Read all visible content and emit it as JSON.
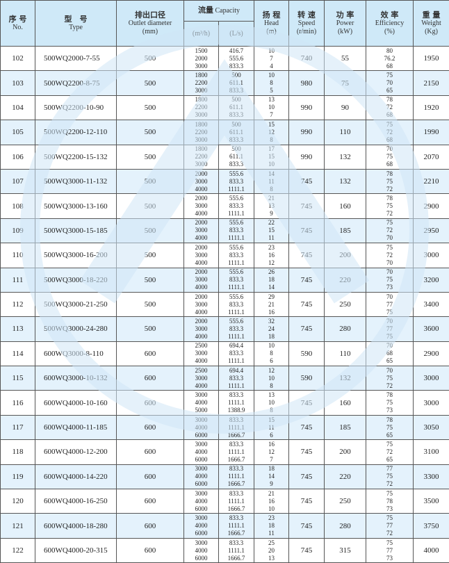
{
  "header": {
    "no": {
      "cn": "序 号",
      "en": "No."
    },
    "type": {
      "cn": "型　号",
      "en": "Type"
    },
    "outlet": {
      "cn": "排出口径",
      "en": "Outlet diameter",
      "unit": "(mm)"
    },
    "capacity": {
      "cn": "流量",
      "en": "Capacity",
      "unit_m3h": "(m³/h)",
      "unit_ls": "(L/s)"
    },
    "head": {
      "cn": "扬 程",
      "en": "Head",
      "unit": "(m)"
    },
    "speed": {
      "cn": "转 速",
      "en": "Speed",
      "unit": "(r/min)"
    },
    "power": {
      "cn": "功 率",
      "en": "Power",
      "unit": "(kW)"
    },
    "efficiency": {
      "cn": "效 率",
      "en": "Efficiency",
      "unit": "(%)"
    },
    "weight": {
      "cn": "重 量",
      "en": "Weight",
      "unit": "(Kg)"
    }
  },
  "colors": {
    "header_bg": "#cfe9f8",
    "alt_row_bg": "#e4f2fc",
    "watermark": "#cfe6f6"
  },
  "rows": [
    {
      "no": "102",
      "type": "500WQ2000-7-55",
      "outlet": "500",
      "m3h": [
        "1500",
        "2000",
        "3000"
      ],
      "ls": [
        "416.7",
        "555.6",
        "833.3"
      ],
      "head": [
        "10",
        "7",
        "4"
      ],
      "speed": "740",
      "power": "55",
      "eff": [
        "80",
        "76.2",
        "68"
      ],
      "weight": "1950"
    },
    {
      "no": "103",
      "type": "500WQ2200-8-75",
      "outlet": "500",
      "m3h": [
        "1800",
        "2200",
        "3000"
      ],
      "ls": [
        "500",
        "611.1",
        "833.3"
      ],
      "head": [
        "10",
        "8",
        "5"
      ],
      "speed": "980",
      "power": "75",
      "eff": [
        "75",
        "70",
        "65"
      ],
      "weight": "2150"
    },
    {
      "no": "104",
      "type": "500WQ2200-10-90",
      "outlet": "500",
      "m3h": [
        "1800",
        "2200",
        "3000"
      ],
      "ls": [
        "500",
        "611.1",
        "833.3"
      ],
      "head": [
        "13",
        "10",
        "7"
      ],
      "speed": "990",
      "power": "90",
      "eff": [
        "78",
        "72",
        "68"
      ],
      "weight": "1920"
    },
    {
      "no": "105",
      "type": "500WQ2200-12-110",
      "outlet": "500",
      "m3h": [
        "1800",
        "2200",
        "3000"
      ],
      "ls": [
        "500",
        "611.1",
        "833.3"
      ],
      "head": [
        "15",
        "12",
        "8"
      ],
      "speed": "990",
      "power": "110",
      "eff": [
        "75",
        "72",
        "68"
      ],
      "weight": "1990"
    },
    {
      "no": "106",
      "type": "500WQ2200-15-132",
      "outlet": "500",
      "m3h": [
        "1800",
        "2200",
        "3000"
      ],
      "ls": [
        "500",
        "611.1",
        "833.3"
      ],
      "head": [
        "17",
        "15",
        "10"
      ],
      "speed": "990",
      "power": "132",
      "eff": [
        "70",
        "75",
        "68"
      ],
      "weight": "2070"
    },
    {
      "no": "107",
      "type": "500WQ3000-11-132",
      "outlet": "500",
      "m3h": [
        "2000",
        "3000",
        "4000"
      ],
      "ls": [
        "555.6",
        "833.3",
        "1111.1"
      ],
      "head": [
        "14",
        "11",
        "8"
      ],
      "speed": "745",
      "power": "132",
      "eff": [
        "78",
        "75",
        "72"
      ],
      "weight": "2210"
    },
    {
      "no": "108",
      "type": "500WQ3000-13-160",
      "outlet": "500",
      "m3h": [
        "2000",
        "3000",
        "4000"
      ],
      "ls": [
        "555.6",
        "833.3",
        "1111.1"
      ],
      "head": [
        "21",
        "13",
        "9"
      ],
      "speed": "745",
      "power": "160",
      "eff": [
        "78",
        "75",
        "72"
      ],
      "weight": "2900"
    },
    {
      "no": "109",
      "type": "500WQ3000-15-185",
      "outlet": "500",
      "m3h": [
        "2000",
        "3000",
        "4000"
      ],
      "ls": [
        "555.6",
        "833.3",
        "1111.1"
      ],
      "head": [
        "22",
        "15",
        "11"
      ],
      "speed": "745",
      "power": "185",
      "eff": [
        "75",
        "72",
        "70"
      ],
      "weight": "2950"
    },
    {
      "no": "110",
      "type": "500WQ3000-16-200",
      "outlet": "500",
      "m3h": [
        "2000",
        "3000",
        "4000"
      ],
      "ls": [
        "555.6",
        "833.3",
        "1111.1"
      ],
      "head": [
        "23",
        "16",
        "12"
      ],
      "speed": "745",
      "power": "200",
      "eff": [
        "75",
        "72",
        "70"
      ],
      "weight": "3000"
    },
    {
      "no": "111",
      "type": "500WQ3000-18-220",
      "outlet": "500",
      "m3h": [
        "2000",
        "3000",
        "4000"
      ],
      "ls": [
        "555.6",
        "833.3",
        "1111.1"
      ],
      "head": [
        "26",
        "18",
        "14"
      ],
      "speed": "745",
      "power": "220",
      "eff": [
        "70",
        "75",
        "73"
      ],
      "weight": "3200"
    },
    {
      "no": "112",
      "type": "500WQ3000-21-250",
      "outlet": "500",
      "m3h": [
        "2000",
        "3000",
        "4000"
      ],
      "ls": [
        "555.6",
        "833.3",
        "1111.1"
      ],
      "head": [
        "29",
        "21",
        "16"
      ],
      "speed": "745",
      "power": "250",
      "eff": [
        "70",
        "77",
        "75"
      ],
      "weight": "3400"
    },
    {
      "no": "113",
      "type": "500WQ3000-24-280",
      "outlet": "500",
      "m3h": [
        "2000",
        "3000",
        "4000"
      ],
      "ls": [
        "555.6",
        "833.3",
        "1111.1"
      ],
      "head": [
        "32",
        "24",
        "18"
      ],
      "speed": "745",
      "power": "280",
      "eff": [
        "70",
        "77",
        "75"
      ],
      "weight": "3600"
    },
    {
      "no": "114",
      "type": "600WQ3000-8-110",
      "outlet": "600",
      "m3h": [
        "2500",
        "3000",
        "4000"
      ],
      "ls": [
        "694.4",
        "833.3",
        "1111.1"
      ],
      "head": [
        "10",
        "8",
        "6"
      ],
      "speed": "590",
      "power": "110",
      "eff": [
        "70",
        "68",
        "65"
      ],
      "weight": "2900"
    },
    {
      "no": "115",
      "type": "600WQ3000-10-132",
      "outlet": "600",
      "m3h": [
        "2500",
        "3000",
        "4000"
      ],
      "ls": [
        "694.4",
        "833.3",
        "1111.1"
      ],
      "head": [
        "12",
        "10",
        "8"
      ],
      "speed": "590",
      "power": "132",
      "eff": [
        "70",
        "75",
        "72"
      ],
      "weight": "3000"
    },
    {
      "no": "116",
      "type": "600WQ4000-10-160",
      "outlet": "600",
      "m3h": [
        "3000",
        "4000",
        "5000"
      ],
      "ls": [
        "833.3",
        "1111.1",
        "1388.9"
      ],
      "head": [
        "13",
        "10",
        "8"
      ],
      "speed": "745",
      "power": "160",
      "eff": [
        "78",
        "75",
        "73"
      ],
      "weight": "3000"
    },
    {
      "no": "117",
      "type": "600WQ4000-11-185",
      "outlet": "600",
      "m3h": [
        "3000",
        "4000",
        "6000"
      ],
      "ls": [
        "833.3",
        "1111.1",
        "1666.7"
      ],
      "head": [
        "15",
        "11",
        "6"
      ],
      "speed": "745",
      "power": "185",
      "eff": [
        "78",
        "75",
        "65"
      ],
      "weight": "3050"
    },
    {
      "no": "118",
      "type": "600WQ4000-12-200",
      "outlet": "600",
      "m3h": [
        "3000",
        "4000",
        "6000"
      ],
      "ls": [
        "833.3",
        "1111.1",
        "1666.7"
      ],
      "head": [
        "16",
        "12",
        "7"
      ],
      "speed": "745",
      "power": "200",
      "eff": [
        "75",
        "72",
        "65"
      ],
      "weight": "3100"
    },
    {
      "no": "119",
      "type": "600WQ4000-14-220",
      "outlet": "600",
      "m3h": [
        "3000",
        "4000",
        "6000"
      ],
      "ls": [
        "833.3",
        "1111.1",
        "1666.7"
      ],
      "head": [
        "18",
        "14",
        "9"
      ],
      "speed": "745",
      "power": "220",
      "eff": [
        "77",
        "75",
        "72"
      ],
      "weight": "3300"
    },
    {
      "no": "120",
      "type": "600WQ4000-16-250",
      "outlet": "600",
      "m3h": [
        "3000",
        "4000",
        "6000"
      ],
      "ls": [
        "833.3",
        "1111.1",
        "1666.7"
      ],
      "head": [
        "21",
        "16",
        "10"
      ],
      "speed": "745",
      "power": "250",
      "eff": [
        "75",
        "78",
        "73"
      ],
      "weight": "3500"
    },
    {
      "no": "121",
      "type": "600WQ4000-18-280",
      "outlet": "600",
      "m3h": [
        "3000",
        "4000",
        "6000"
      ],
      "ls": [
        "833.3",
        "1111.1",
        "1666.7"
      ],
      "head": [
        "23",
        "18",
        "11"
      ],
      "speed": "745",
      "power": "280",
      "eff": [
        "75",
        "77",
        "72"
      ],
      "weight": "3750"
    },
    {
      "no": "122",
      "type": "600WQ4000-20-315",
      "outlet": "600",
      "m3h": [
        "3000",
        "4000",
        "6000"
      ],
      "ls": [
        "833.3",
        "1111.1",
        "1666.7"
      ],
      "head": [
        "25",
        "20",
        "13"
      ],
      "speed": "745",
      "power": "315",
      "eff": [
        "75",
        "77",
        "73"
      ],
      "weight": "4000"
    }
  ]
}
